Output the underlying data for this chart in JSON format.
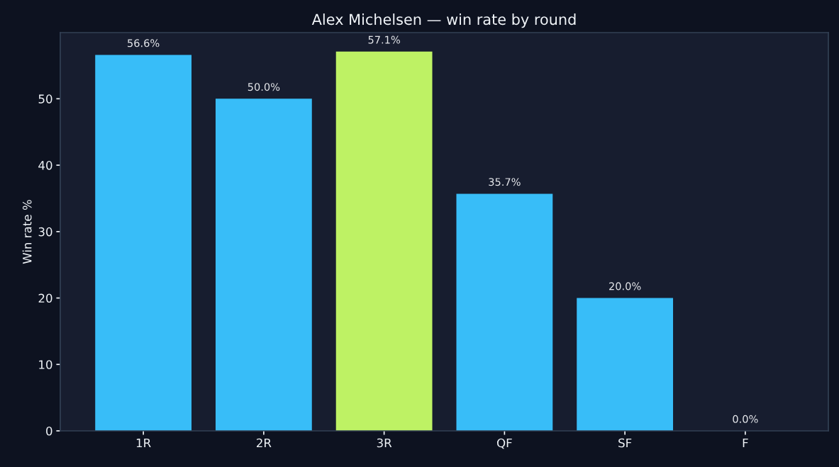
{
  "chart_data": {
    "type": "bar",
    "title": "Alex Michelsen — win rate by round",
    "ylabel": "Win rate %",
    "categories": [
      "1R",
      "2R",
      "3R",
      "QF",
      "SF",
      "F"
    ],
    "values": [
      56.6,
      50.0,
      57.1,
      35.7,
      20.0,
      0.0
    ],
    "colors": [
      "#38bdf8",
      "#38bdf8",
      "#bef264",
      "#38bdf8",
      "#38bdf8",
      "#38bdf8"
    ],
    "value_labels": [
      "56.6%",
      "50.0%",
      "57.1%",
      "35.7%",
      "20.0%",
      "0.0%"
    ],
    "ylim": [
      0,
      59.96
    ],
    "yticks": [
      0,
      10,
      20,
      30,
      40,
      50
    ],
    "grid": false,
    "legend": false
  }
}
